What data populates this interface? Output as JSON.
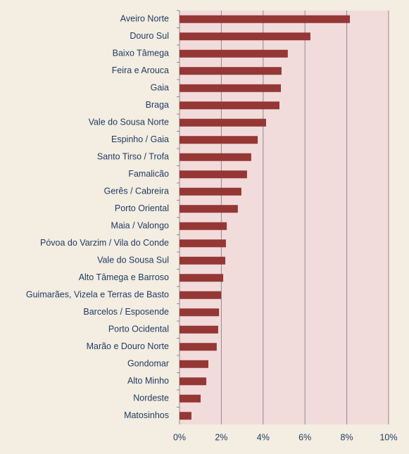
{
  "chart_data": {
    "type": "barh",
    "color": "#953735",
    "categories": [
      "Aveiro Norte",
      "Douro Sul",
      "Baixo Tâmega",
      "Feira e Arouca",
      "Gaia",
      "Braga",
      "Vale do Sousa Norte",
      "Espinho / Gaia",
      "Santo Tirso / Trofa",
      "Famalicão",
      "Gerês / Cabreira",
      "Porto Oriental",
      "Maia / Valongo",
      "Póvoa do Varzim / Vila do Conde",
      "Vale do Sousa Sul",
      "Alto Tâmega e Barroso",
      "Guimarães, Vizela e Terras de Basto",
      "Barcelos / Esposende",
      "Porto Ocidental",
      "Marão e Douro Norte",
      "Gondomar",
      "Alto Minho",
      "Nordeste",
      "Matosinhos"
    ],
    "values": [
      8.15,
      6.26,
      5.18,
      4.88,
      4.85,
      4.78,
      4.14,
      3.74,
      3.43,
      3.23,
      2.96,
      2.79,
      2.26,
      2.22,
      2.19,
      2.09,
      1.99,
      1.89,
      1.85,
      1.78,
      1.38,
      1.28,
      1.01,
      0.57
    ],
    "xlim": [
      0,
      10
    ],
    "xticks": [
      {
        "value": 0,
        "label": "0%"
      },
      {
        "value": 2,
        "label": "2%"
      },
      {
        "value": 4,
        "label": "4%"
      },
      {
        "value": 6,
        "label": "6%"
      },
      {
        "value": 8,
        "label": "8%"
      },
      {
        "value": 10,
        "label": "10%"
      }
    ],
    "grid": true
  }
}
